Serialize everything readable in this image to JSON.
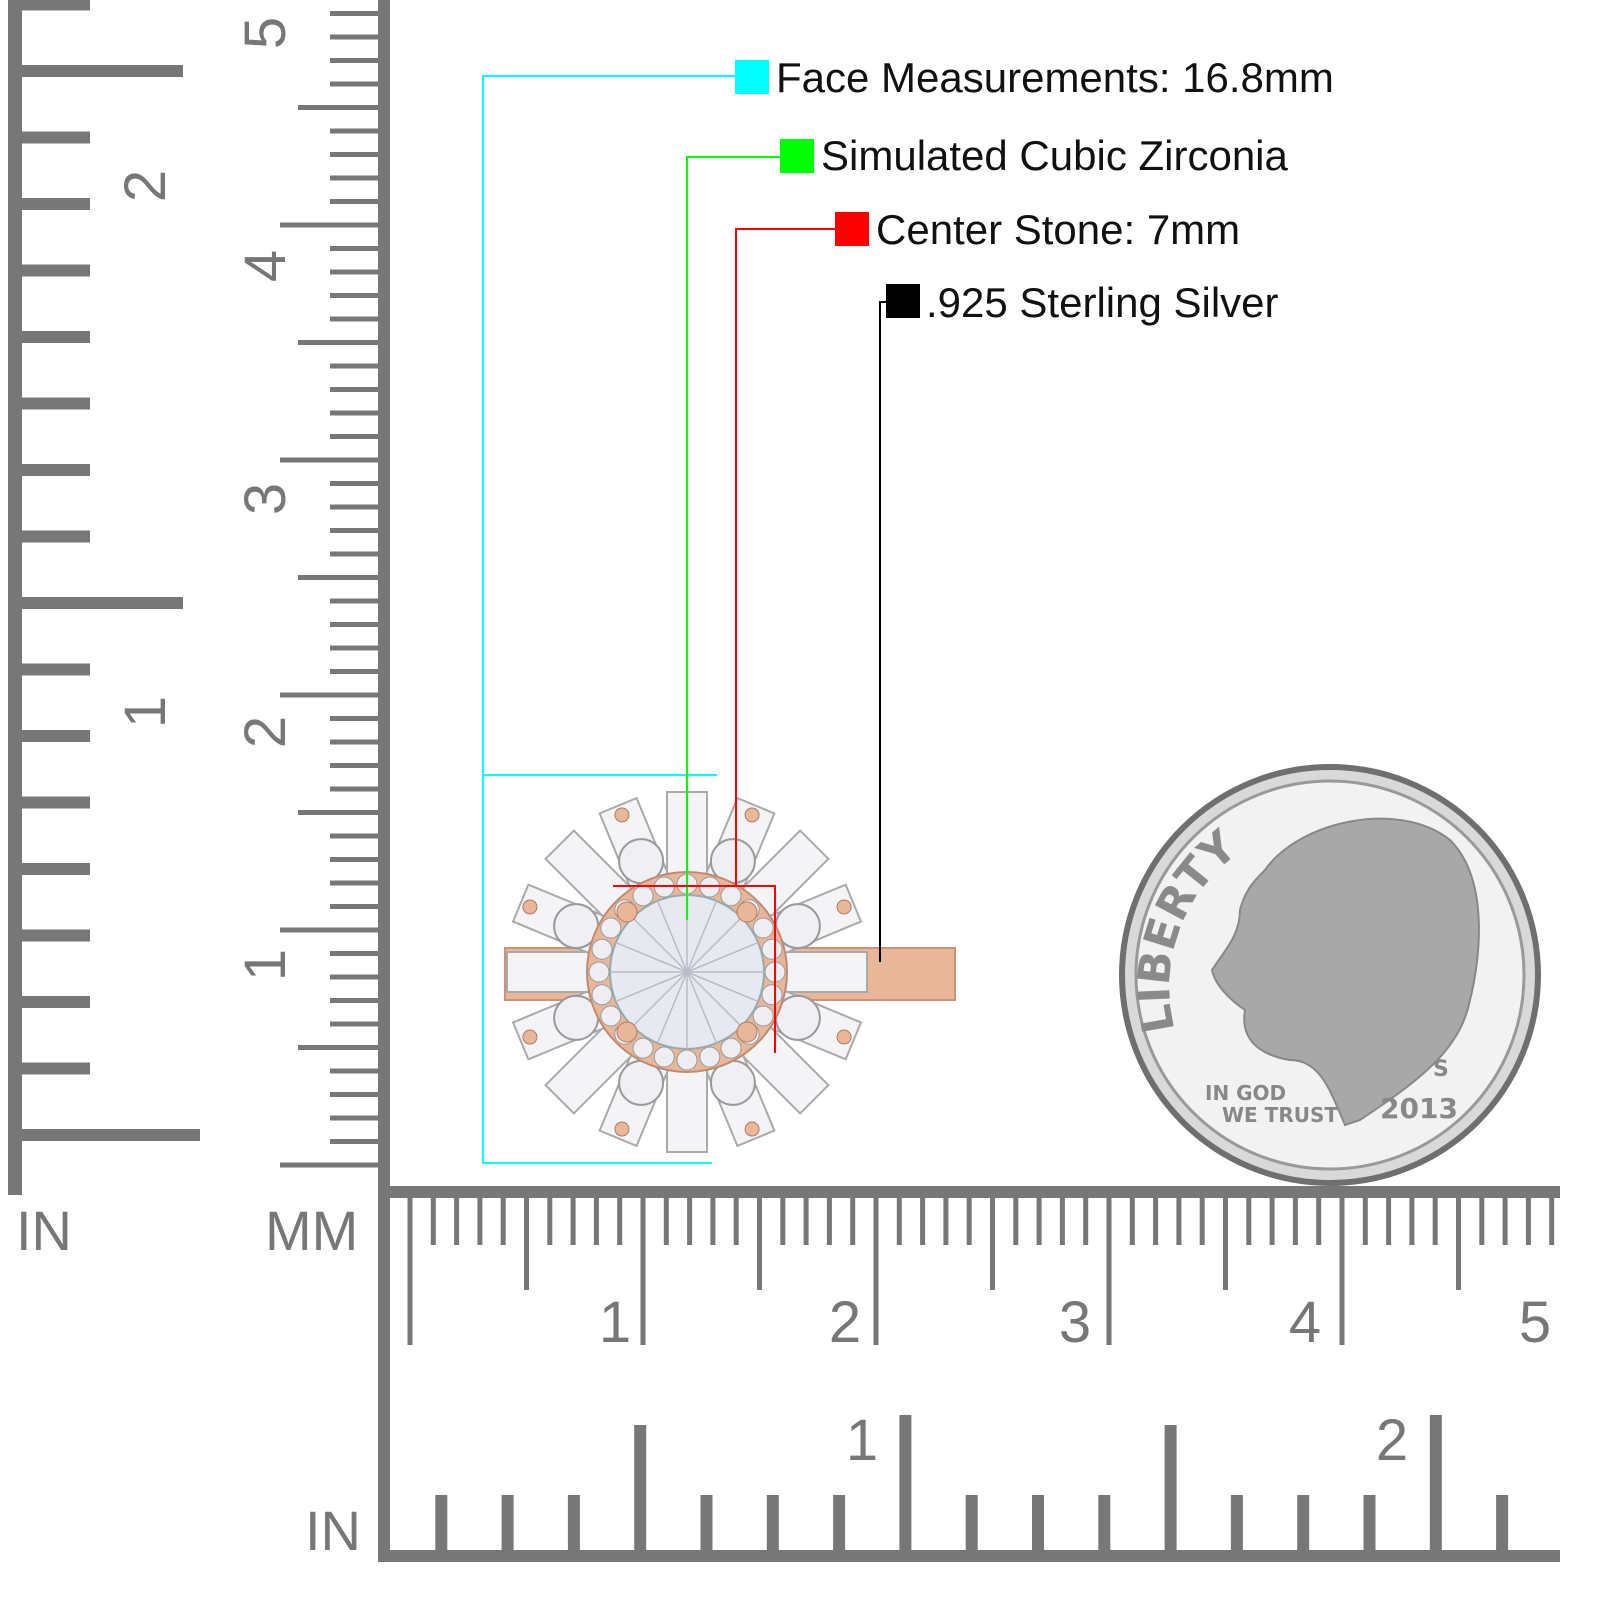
{
  "callouts": [
    {
      "label": "Face Measurements: 16.8mm",
      "color": "#00ffff"
    },
    {
      "label": "Simulated Cubic Zirconia",
      "color": "#00ff00"
    },
    {
      "label": "Center Stone: 7mm",
      "color": "#ff0000"
    },
    {
      "label": ".925 Sterling Silver",
      "color": "#000000"
    }
  ],
  "rulers": {
    "left_inch_labels": [
      "1",
      "2"
    ],
    "left_mm_labels": [
      "1",
      "2",
      "3",
      "4",
      "5"
    ],
    "bottom_mm_labels": [
      "1",
      "2",
      "3",
      "4",
      "5"
    ],
    "bottom_inch_labels": [
      "1",
      "2"
    ],
    "unit_in_top": "IN",
    "unit_mm": "MM",
    "unit_in_bottom": "IN",
    "color": "#777777"
  },
  "coin": {
    "liberty": "LIBERTY",
    "motto_line1": "IN GOD",
    "motto_line2": "WE TRUST",
    "year": "2013",
    "mint_mark": "S"
  },
  "ring": {
    "metal_color": "#e8b79a"
  }
}
